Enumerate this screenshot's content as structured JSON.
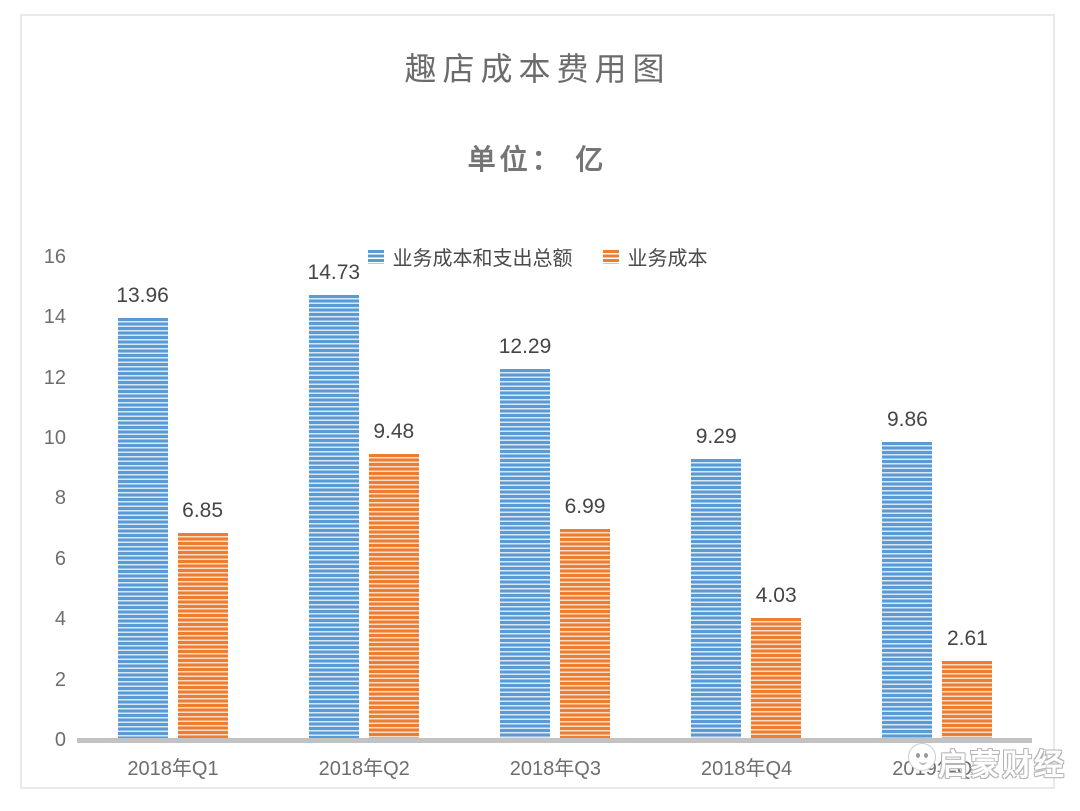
{
  "chart_data": {
    "type": "bar",
    "title": "趣店成本费用图",
    "unit_label": "单位： 亿",
    "categories": [
      "2018年Q1",
      "2018年Q2",
      "2018年Q3",
      "2018年Q4",
      "2019年Q1"
    ],
    "series": [
      {
        "name": "业务成本和支出总额",
        "color": "#5b9bd5",
        "stripe_color": "#d9e8f7",
        "values": [
          13.96,
          14.73,
          12.29,
          9.29,
          9.86
        ]
      },
      {
        "name": "业务成本",
        "color": "#ed7d31",
        "stripe_color": "#fbdcc5",
        "values": [
          6.85,
          9.48,
          6.99,
          4.03,
          2.61
        ]
      }
    ],
    "ylim": [
      0,
      16
    ],
    "yticks": [
      0,
      2,
      4,
      6,
      8,
      10,
      12,
      14,
      16
    ],
    "grid": false,
    "legend_position": "top-center",
    "value_labels_decimals": 2,
    "axis_color": "#c2c2c2",
    "text_color": "#6e6e6e"
  },
  "watermark": {
    "text": "启蒙财经"
  }
}
